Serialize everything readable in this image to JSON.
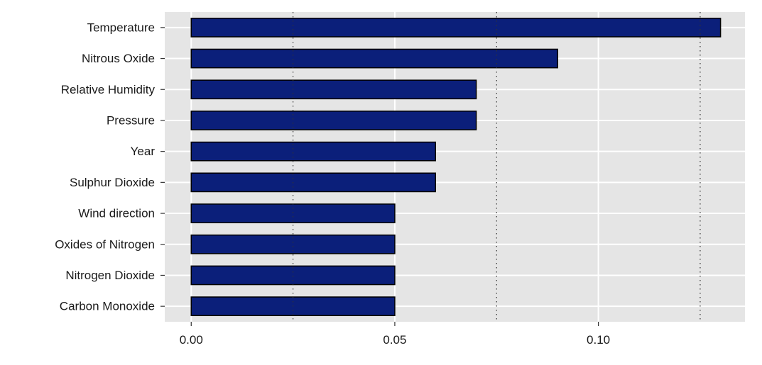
{
  "chart_data": {
    "type": "bar",
    "orientation": "horizontal",
    "categories": [
      "Temperature",
      "Nitrous Oxide",
      "Relative Humidity",
      "Pressure",
      "Year",
      "Sulphur Dioxide",
      "Wind direction",
      "Oxides of Nitrogen",
      "Nitrogen Dioxide",
      "Carbon Monoxide"
    ],
    "values": [
      0.13,
      0.09,
      0.07,
      0.07,
      0.06,
      0.06,
      0.05,
      0.05,
      0.05,
      0.05
    ],
    "xlim": [
      -0.0065,
      0.136
    ],
    "x_ticks": [
      0.0,
      0.05,
      0.1
    ],
    "x_tick_labels": [
      "0.00",
      "0.05",
      "0.10"
    ],
    "reference_lines": [
      0.025,
      0.075,
      0.125
    ],
    "title": "",
    "xlabel": "",
    "ylabel": "",
    "grid": true,
    "legend": "none",
    "colors": {
      "bar_fill": "#0b1f7a",
      "bar_stroke": "#000000",
      "panel_background": "#e5e5e5",
      "grid": "#ffffff",
      "reference_line": "#333333"
    }
  }
}
